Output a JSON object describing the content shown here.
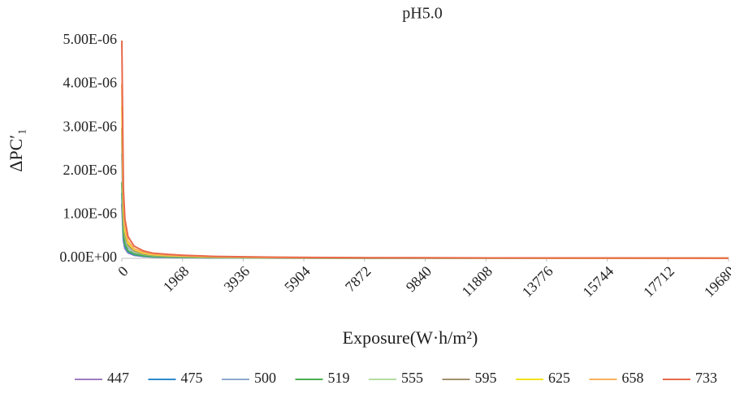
{
  "chart_data": {
    "type": "line",
    "title": "pH5.0",
    "x_label": "Exposure(W·h/m²)",
    "y_label": "ΔPC′₁",
    "x": [
      0,
      50,
      100,
      200,
      400,
      700,
      1000,
      1500,
      2000,
      3000,
      5000,
      8000,
      12000,
      19680
    ],
    "xlim": [
      0,
      19680
    ],
    "xticks": [
      0,
      1968,
      3936,
      5904,
      7872,
      9840,
      11808,
      13776,
      15744,
      17712,
      19680
    ],
    "ylim": [
      0,
      5e-06
    ],
    "yticks": [
      {
        "value": 0,
        "label": "0.00E+00"
      },
      {
        "value": 1e-06,
        "label": "1.00E-06"
      },
      {
        "value": 2e-06,
        "label": "2.00E-06"
      },
      {
        "value": 3e-06,
        "label": "3.00E-06"
      },
      {
        "value": 4e-06,
        "label": "4.00E-06"
      },
      {
        "value": 5e-06,
        "label": "5.00E-06"
      }
    ],
    "legend": "bottom",
    "series": [
      {
        "name": "447",
        "color": "#9e7cc1",
        "values": [
          1.25e-06,
          4e-07,
          2.25e-07,
          1.25e-07,
          7e-08,
          4.3e-08,
          3e-08,
          2.3e-08,
          1.8e-08,
          1.1e-08,
          6e-09,
          4e-09,
          3e-09,
          1e-09
        ]
      },
      {
        "name": "475",
        "color": "#2e8bcc",
        "values": [
          1.5e-06,
          4.8e-07,
          2.7e-07,
          1.5e-07,
          8.4e-08,
          5.1e-08,
          3.6e-08,
          2.7e-08,
          2.1e-08,
          1.4e-08,
          7.5e-09,
          4.5e-09,
          3e-09,
          1.5e-09
        ]
      },
      {
        "name": "500",
        "color": "#8fa9cf",
        "values": [
          2.4e-06,
          7.7e-07,
          4.3e-07,
          2.4e-07,
          1.3e-07,
          8.2e-08,
          5.8e-08,
          4.3e-08,
          3.4e-08,
          2.2e-08,
          1.2e-08,
          7.2e-09,
          4.8e-09,
          2.4e-09
        ]
      },
      {
        "name": "519",
        "color": "#4caf50",
        "values": [
          1.75e-06,
          5.6e-07,
          3.2e-07,
          1.75e-07,
          9.8e-08,
          6e-08,
          4.2e-08,
          3.2e-08,
          2.5e-08,
          1.6e-08,
          8.8e-09,
          5.3e-09,
          3.5e-09,
          1.8e-09
        ]
      },
      {
        "name": "555",
        "color": "#b5dca0",
        "values": [
          2.75e-06,
          8.8e-07,
          5e-07,
          2.75e-07,
          1.5e-07,
          9.4e-08,
          6.6e-08,
          5e-08,
          3.9e-08,
          2.5e-08,
          1.4e-08,
          8.3e-09,
          5.5e-09,
          2.8e-09
        ]
      },
      {
        "name": "595",
        "color": "#a09070",
        "values": [
          3e-06,
          9.6e-07,
          5.4e-07,
          3e-07,
          1.7e-07,
          1e-07,
          7.2e-08,
          5.4e-08,
          4.2e-08,
          2.7e-08,
          1.5e-08,
          9e-09,
          6e-09,
          3e-09
        ]
      },
      {
        "name": "625",
        "color": "#f2e21c",
        "values": [
          3.5e-06,
          1.12e-06,
          6.3e-07,
          3.5e-07,
          2e-07,
          1.2e-07,
          8.4e-08,
          6.3e-08,
          4.9e-08,
          3.2e-08,
          1.8e-08,
          1.05e-08,
          7e-09,
          3.5e-09
        ]
      },
      {
        "name": "658",
        "color": "#f6b25a",
        "values": [
          4e-06,
          1.28e-06,
          7.2e-07,
          4e-07,
          2.2e-07,
          1.4e-07,
          9.6e-08,
          7.2e-08,
          5.6e-08,
          3.6e-08,
          2e-08,
          1.2e-08,
          8e-09,
          4e-09
        ]
      },
      {
        "name": "733",
        "color": "#e8694a",
        "values": [
          5e-06,
          1.6e-06,
          9e-07,
          5e-07,
          2.8e-07,
          1.7e-07,
          1.2e-07,
          9e-08,
          7e-08,
          4.5e-08,
          2.5e-08,
          1.5e-08,
          1e-08,
          5e-09
        ]
      }
    ]
  }
}
